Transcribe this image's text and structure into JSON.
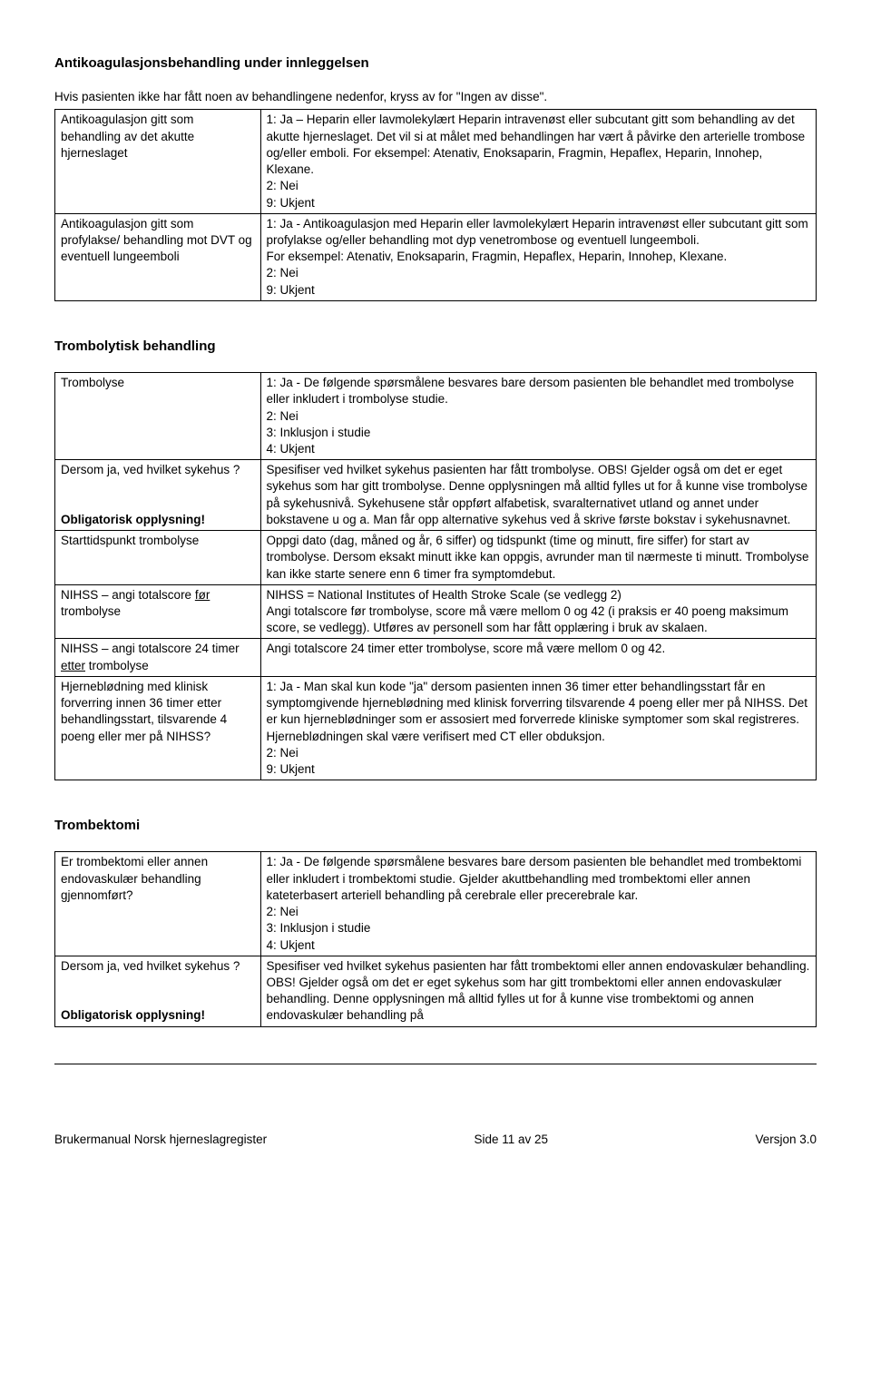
{
  "section1": {
    "heading": "Antikoagulasjonsbehandling under innleggelsen",
    "intro": "Hvis pasienten ikke har fått noen av behandlingene nedenfor, kryss av for \"Ingen av disse\".",
    "rows": [
      {
        "left": "Antikoagulasjon gitt som behandling av det akutte hjerneslaget",
        "right_lines": [
          "1: Ja – Heparin eller lavmolekylært Heparin intravenøst eller subcutant gitt som behandling av det akutte hjerneslaget. Det vil si at målet med behandlingen har vært å påvirke den arterielle trombose og/eller emboli. For eksempel: Atenativ, Enoksaparin, Fragmin, Hepaflex, Heparin, Innohep, Klexane.",
          "2: Nei",
          "9: Ukjent"
        ]
      },
      {
        "left": "Antikoagulasjon gitt som profylakse/ behandling mot DVT og eventuell lungeemboli",
        "right_lines": [
          "1: Ja - Antikoagulasjon med Heparin eller lavmolekylært Heparin intravenøst eller subcutant gitt som profylakse og/eller behandling mot dyp venetrombose og eventuell lungeemboli.",
          "For eksempel: Atenativ, Enoksaparin, Fragmin, Hepaflex, Heparin, Innohep, Klexane.",
          "2: Nei",
          "9: Ukjent"
        ]
      }
    ]
  },
  "section2": {
    "heading": "Trombolytisk behandling",
    "rows": [
      {
        "left_parts": [
          {
            "t": "Trombolyse"
          }
        ],
        "right_lines": [
          "1: Ja - De følgende spørsmålene besvares bare dersom pasienten ble behandlet med trombolyse eller inkludert i trombolyse studie.",
          "2: Nei",
          "3: Inklusjon i studie",
          "4: Ukjent"
        ]
      },
      {
        "left_parts": [
          {
            "t": "Dersom ja, ved hvilket sykehus ?"
          },
          {
            "t": ""
          },
          {
            "t": "Obligatorisk opplysning!",
            "b": true
          }
        ],
        "right_lines": [
          "Spesifiser ved hvilket sykehus pasienten har fått trombolyse. OBS! Gjelder også om det er eget sykehus som har gitt trombolyse. Denne opplysningen må alltid fylles ut for å kunne vise trombolyse på sykehusnivå. Sykehusene står oppført alfabetisk, svaralternativet utland og annet under bokstavene u og a. Man får opp alternative sykehus ved å skrive første bokstav i sykehusnavnet."
        ]
      },
      {
        "left_parts": [
          {
            "t": "Starttidspunkt trombolyse"
          }
        ],
        "right_lines": [
          "Oppgi dato (dag, måned og år, 6 siffer) og tidspunkt (time og minutt, fire siffer) for start av trombolyse. Dersom eksakt minutt ikke kan oppgis, avrunder man til nærmeste ti minutt. Trombolyse kan ikke starte senere enn 6 timer fra symptomdebut."
        ]
      },
      {
        "left_html": "NIHSS – angi totalscore <span class=\"u\">før</span> trombolyse",
        "right_lines": [
          "NIHSS = National Institutes of Health Stroke Scale (se vedlegg 2)",
          "Angi totalscore før trombolyse, score må være mellom 0 og 42 (i praksis er 40 poeng maksimum score, se vedlegg). Utføres av personell som har fått opplæring i bruk av skalaen."
        ]
      },
      {
        "left_html": "NIHSS – angi totalscore 24 timer <span class=\"u\">etter</span> trombolyse",
        "right_lines": [
          "Angi totalscore 24 timer etter trombolyse, score må være mellom 0 og 42."
        ]
      },
      {
        "left_parts": [
          {
            "t": "Hjerneblødning med klinisk forverring innen 36 timer etter behandlingsstart, tilsvarende 4 poeng eller mer på NIHSS?"
          }
        ],
        "right_lines": [
          "1: Ja - Man skal kun kode \"ja\" dersom pasienten innen 36 timer etter behandlingsstart får en symptomgivende hjerneblødning med klinisk forverring tilsvarende 4 poeng eller mer på NIHSS. Det er kun hjerneblødninger som er assosiert med forverrede kliniske symptomer som skal registreres. Hjerneblødningen skal være verifisert med CT eller obduksjon.",
          "2: Nei",
          "9: Ukjent"
        ]
      }
    ]
  },
  "section3": {
    "heading": "Trombektomi",
    "rows": [
      {
        "left_parts": [
          {
            "t": "Er trombektomi eller annen endovaskulær behandling gjennomført?"
          }
        ],
        "right_lines": [
          "1: Ja - De følgende spørsmålene besvares bare dersom pasienten ble behandlet med trombektomi eller inkludert i trombektomi studie. Gjelder akuttbehandling med trombektomi eller annen kateterbasert arteriell behandling på cerebrale eller precerebrale kar.",
          "2: Nei",
          "3: Inklusjon i studie",
          "4: Ukjent"
        ]
      },
      {
        "left_parts": [
          {
            "t": "Dersom ja, ved hvilket sykehus ?"
          },
          {
            "t": ""
          },
          {
            "t": "Obligatorisk opplysning!",
            "b": true
          }
        ],
        "right_lines": [
          "Spesifiser ved hvilket sykehus pasienten har fått trombektomi eller annen endovaskulær behandling. OBS! Gjelder også om det er eget sykehus som har gitt trombektomi eller annen endovaskulær behandling. Denne opplysningen må alltid fylles ut for å kunne vise trombektomi og annen endovaskulær behandling på"
        ]
      }
    ]
  },
  "footer": {
    "left": "Brukermanual Norsk hjerneslagregister",
    "center": "Side 11 av 25",
    "right": "Versjon 3.0"
  }
}
